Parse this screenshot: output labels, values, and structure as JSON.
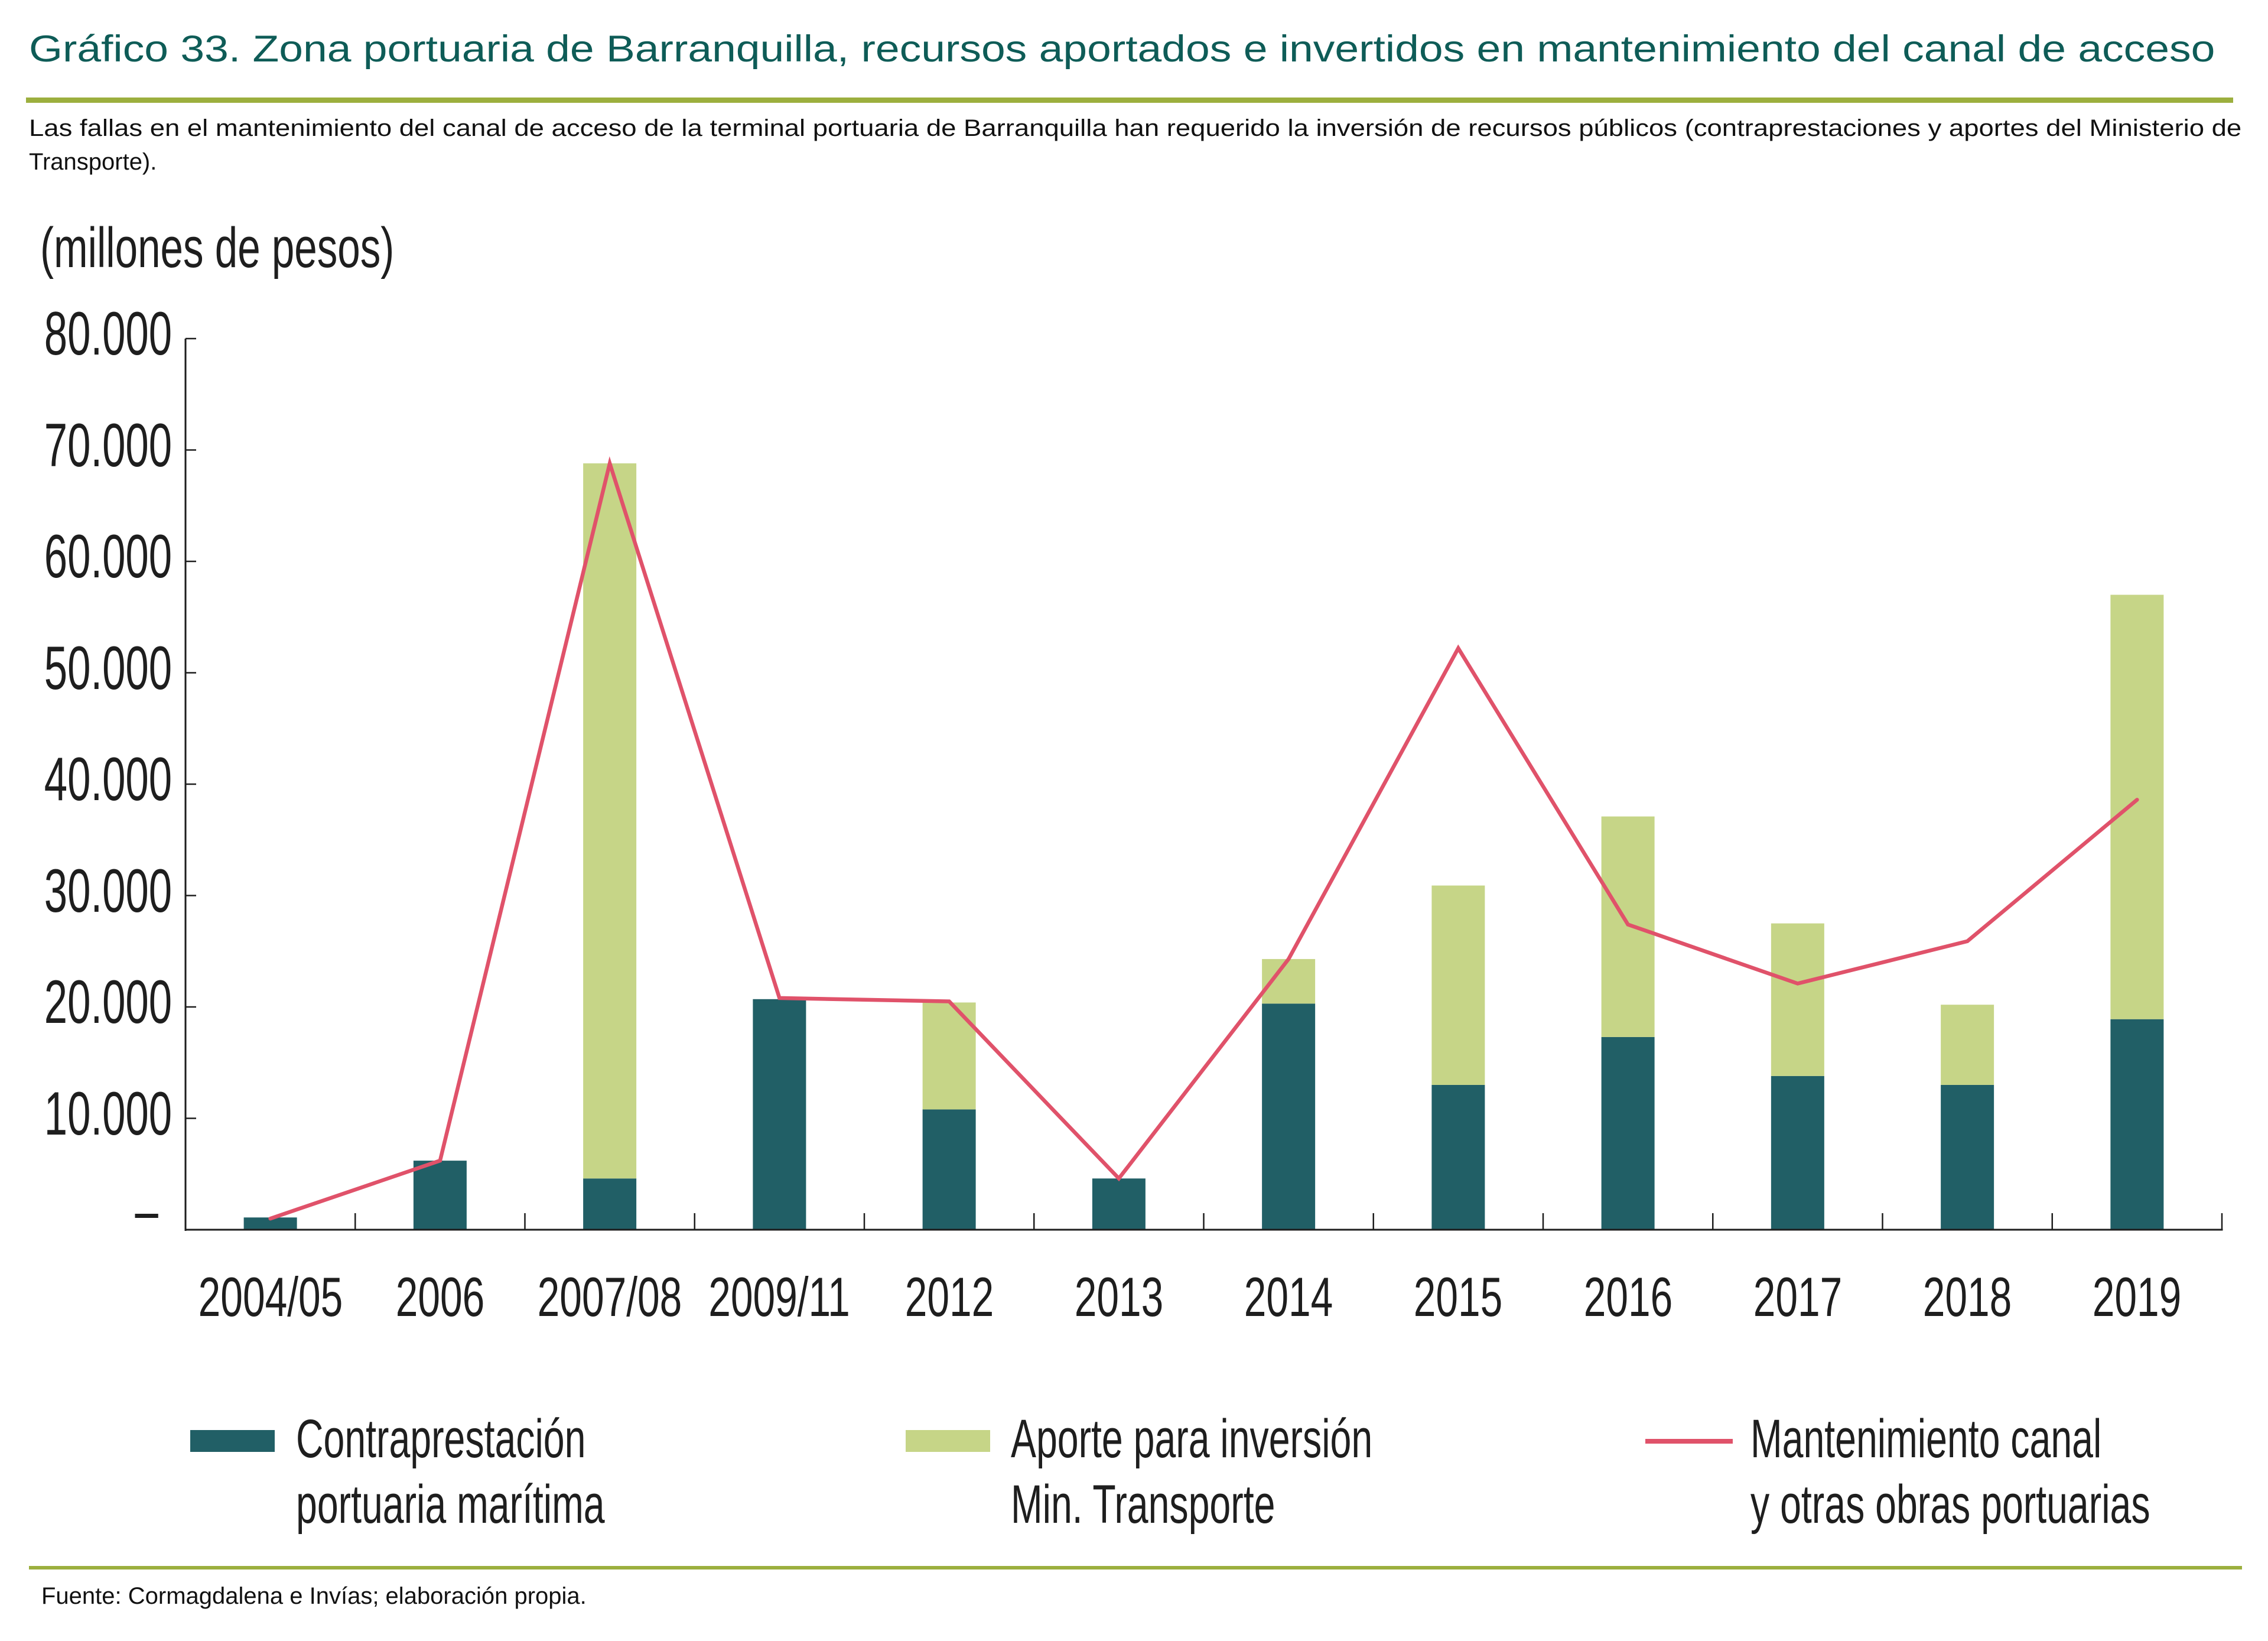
{
  "header": {
    "title": "Gráfico 33. Zona portuaria de Barranquilla, recursos aportados e invertidos en mantenimiento del canal de acceso",
    "subtitle_lines": [
      "Las fallas en el mantenimiento del canal de acceso de la terminal portuaria de Barranquilla han requerido la inversión de recursos públicos (contraprestaciones y aportes del Ministerio de",
      "Transporte)."
    ]
  },
  "footer": {
    "source": "Fuente: Cormagdalena e Invías; elaboración propia."
  },
  "colors": {
    "title": "#0e5c57",
    "rule": "#9caf3e",
    "contraprestacion": "#215f66",
    "aporte": "#c6d587",
    "mantenimiento": "#e0526a",
    "axis": "#1e1e1e"
  },
  "chart_data": {
    "type": "bar",
    "stacked": true,
    "title": "Gráfico 33. Zona portuaria de Barranquilla, recursos aportados e invertidos en mantenimiento del canal de acceso",
    "xlabel": "",
    "ylabel": "(millones de pesos)",
    "ylim": [
      0,
      80000
    ],
    "yticks": [
      0,
      10000,
      20000,
      30000,
      40000,
      50000,
      60000,
      70000,
      80000
    ],
    "ytick_labels": [
      "–",
      "10.000",
      "20.000",
      "30.000",
      "40.000",
      "50.000",
      "60.000",
      "70.000",
      "80.000"
    ],
    "grid": false,
    "legend_position": "bottom",
    "categories": [
      "2004/05",
      "2006",
      "2007/08",
      "2009/11",
      "2012",
      "2013",
      "2014",
      "2015",
      "2016",
      "2017",
      "2018",
      "2019"
    ],
    "series": [
      {
        "name": "Contraprestación portuaria marítima",
        "legend_lines": [
          "Contraprestación",
          "portuaria marítima"
        ],
        "type": "bar",
        "color_key": "contraprestacion",
        "values": [
          1100,
          6200,
          4600,
          20700,
          10800,
          4600,
          20300,
          13000,
          17300,
          13800,
          13000,
          18900
        ]
      },
      {
        "name": "Aporte para inversión Min. Transporte",
        "legend_lines": [
          "Aporte para inversión",
          "Min. Transporte"
        ],
        "type": "bar",
        "color_key": "aporte",
        "values": [
          0,
          0,
          64200,
          0,
          9600,
          0,
          4000,
          17900,
          19800,
          13700,
          7200,
          38100
        ]
      },
      {
        "name": "Mantenimiento canal y otras obras portuarias",
        "legend_lines": [
          "Mantenimiento canal",
          "y otras obras portuarias"
        ],
        "type": "line",
        "color_key": "mantenimiento",
        "values": [
          1000,
          6200,
          68800,
          20800,
          20500,
          4600,
          24300,
          52200,
          27400,
          22100,
          25900,
          38600
        ]
      }
    ]
  }
}
